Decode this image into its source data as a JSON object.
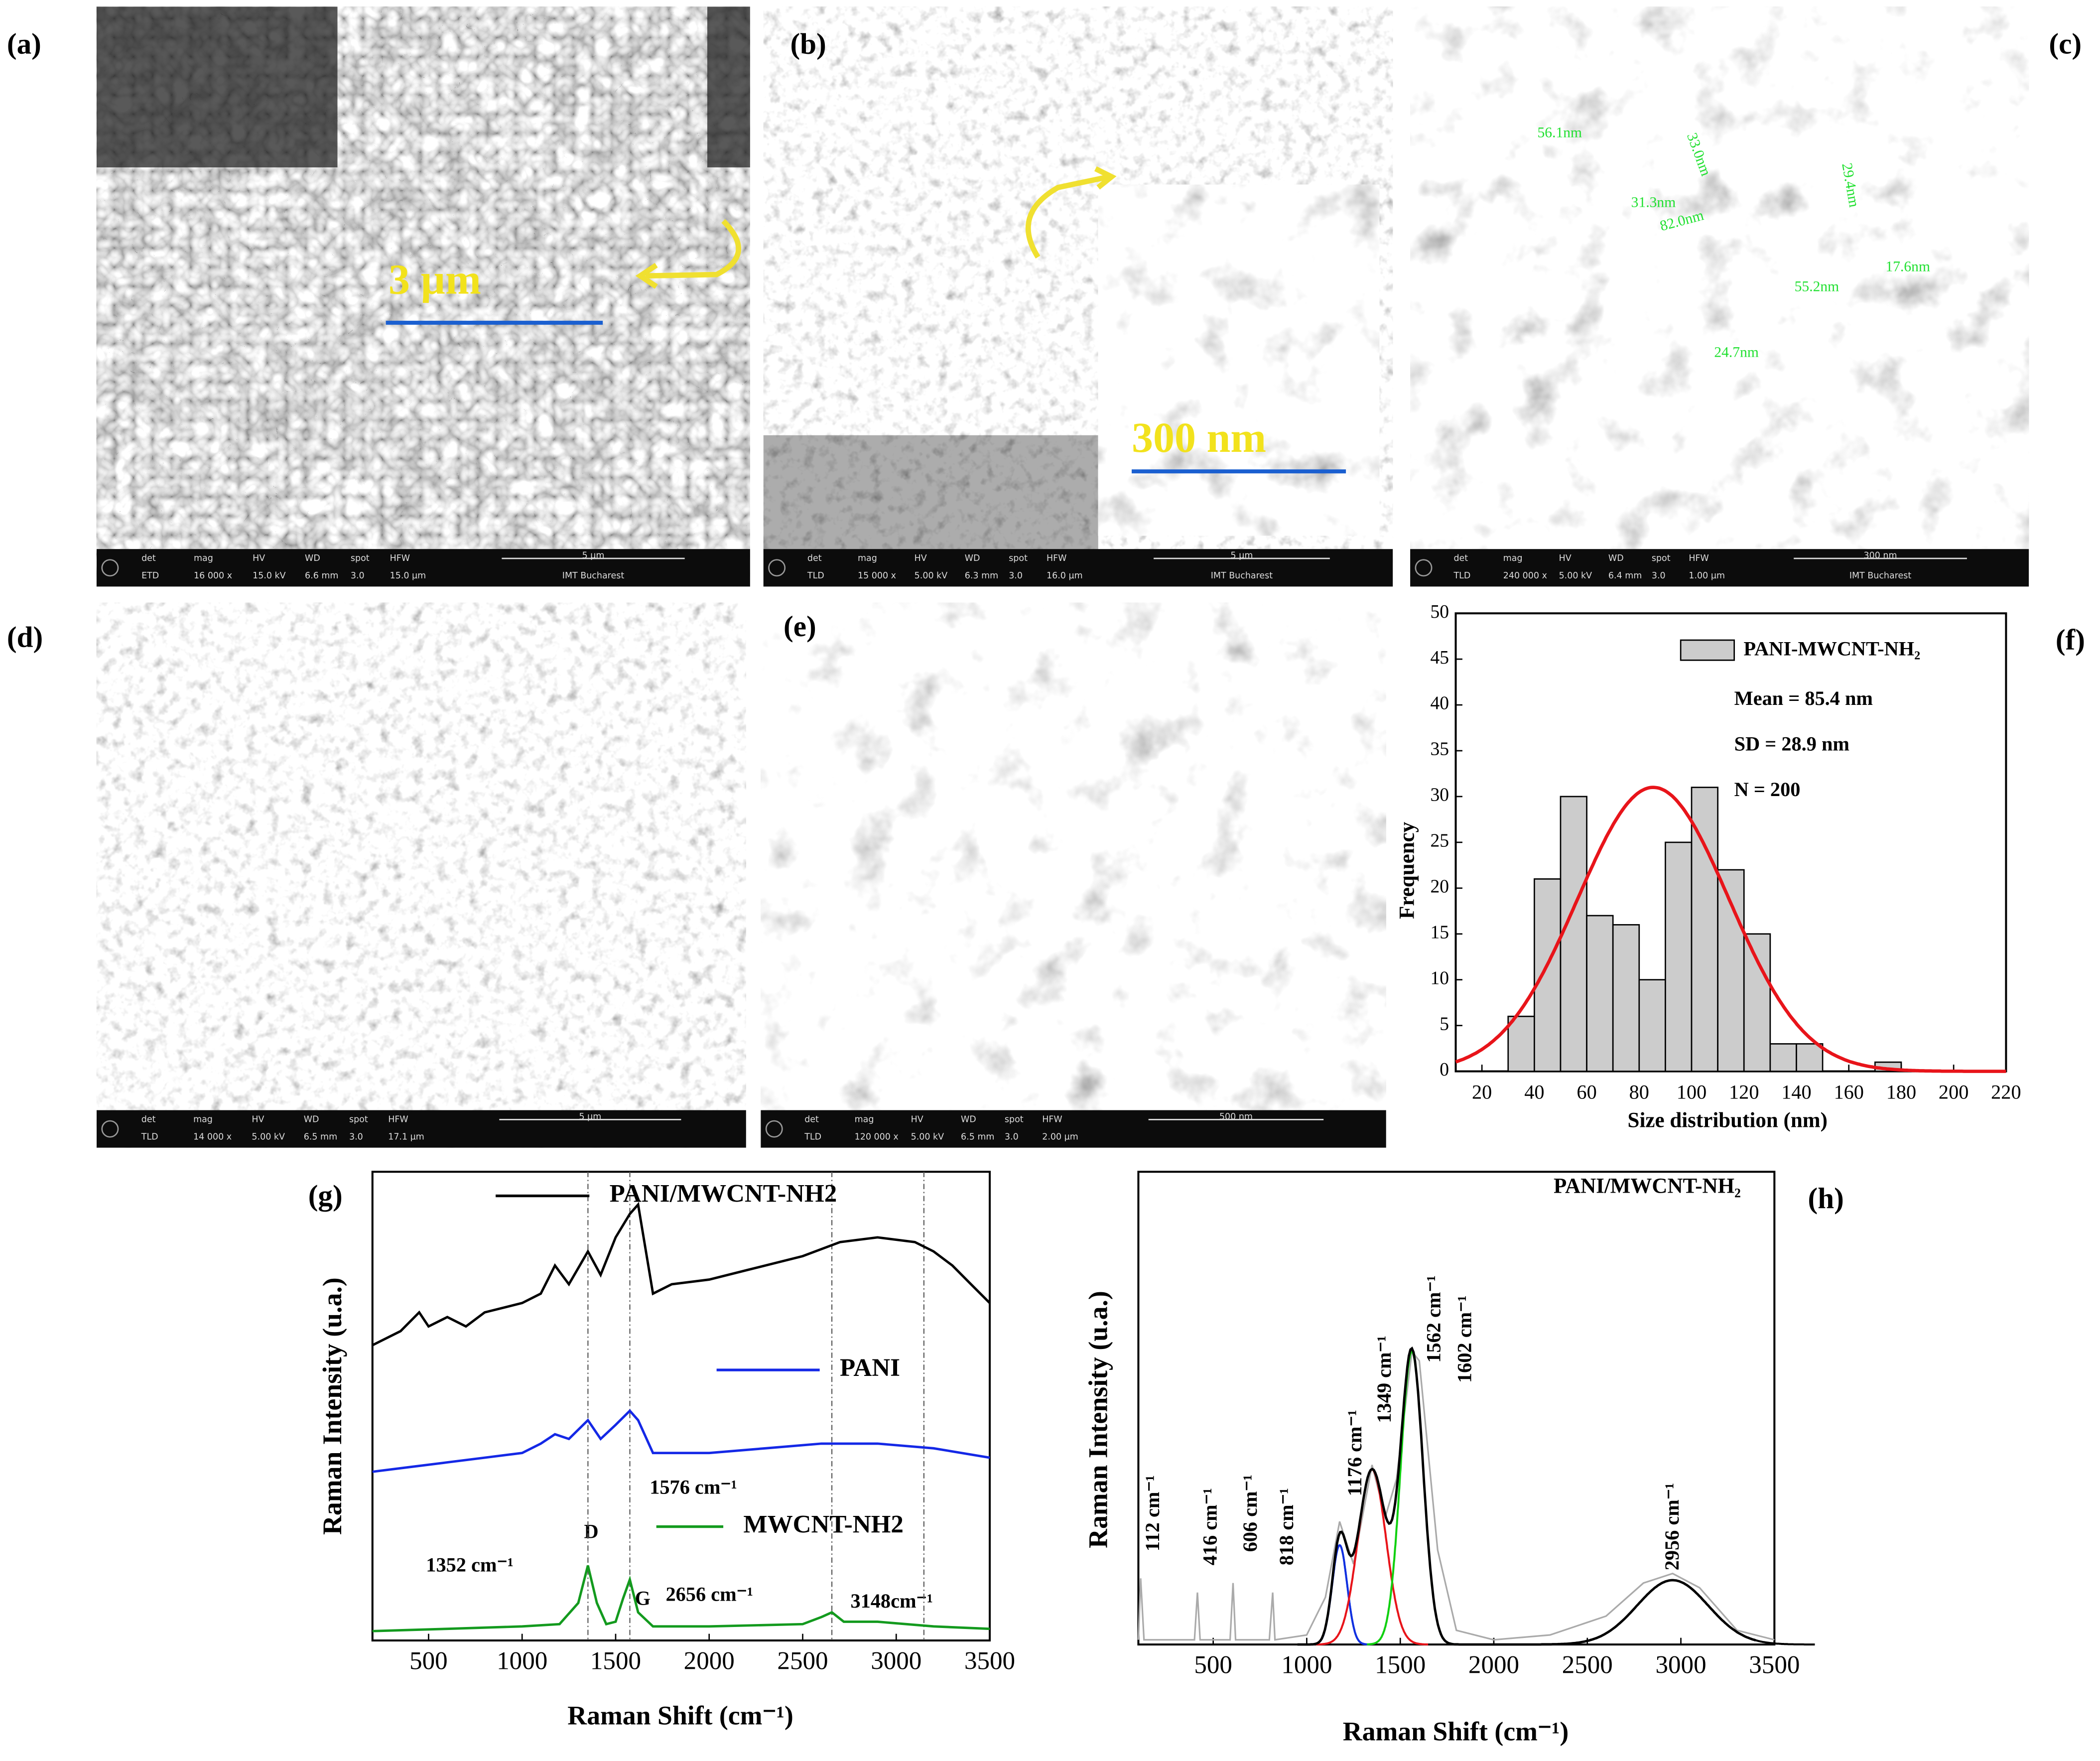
{
  "panel_labels": [
    "(a)",
    "(b)",
    "(c)",
    "(d)",
    "(e)",
    "(f)",
    "(g)",
    "(h)"
  ],
  "sem_databar_headers": [
    "det",
    "mag",
    "HV",
    "WD",
    "spot",
    "HFW"
  ],
  "sem_images": [
    {
      "databar": [
        "ETD",
        "16 000 x",
        "15.0 kV",
        "6.6 mm",
        "3.0",
        "15.0 µm"
      ],
      "scale_bar": "5 µm",
      "institution": "IMT Bucharest",
      "inset_scale_bar": "3 µm"
    },
    {
      "databar": [
        "TLD",
        "15 000 x",
        "5.00 kV",
        "6.3 mm",
        "3.0",
        "16.0 µm"
      ],
      "scale_bar": "5 µm",
      "institution": "IMT Bucharest",
      "inset_scale_bar": "300 nm"
    },
    {
      "databar": [
        "TLD",
        "240 000 x",
        "5.00 kV",
        "6.4 mm",
        "3.0",
        "1.00 µm"
      ],
      "scale_bar": "300 nm",
      "institution": "IMT Bucharest",
      "measurements": [
        "56.1nm",
        "33.0nm",
        "29.4nm",
        "31.3nm",
        "82.0nm",
        "55.2nm",
        "17.6nm",
        "24.7nm"
      ]
    },
    {
      "databar": [
        "TLD",
        "14 000 x",
        "5.00 kV",
        "6.5 mm",
        "3.0",
        "17.1 µm"
      ],
      "scale_bar": "5 µm"
    },
    {
      "databar": [
        "TLD",
        "120 000 x",
        "5.00 kV",
        "6.5 mm",
        "3.0",
        "2.00 µm"
      ],
      "scale_bar": "500 nm"
    }
  ],
  "chart_data": [
    {
      "type": "histogram",
      "name": "PANI-MWCNT-NH₂",
      "color": "#cccccc",
      "bins": [
        30,
        40,
        50,
        60,
        70,
        80,
        90,
        100,
        110,
        120,
        130,
        140,
        150,
        160,
        170,
        180
      ],
      "values": [
        6,
        21,
        30,
        17,
        16,
        10,
        25,
        31,
        22,
        15,
        3,
        3,
        0,
        0,
        1
      ],
      "annotations": [
        "Mean = 85.4 nm",
        "SD = 28.9 nm",
        "N = 200"
      ],
      "fit_curve": {
        "color": "#e8141a",
        "amplitude": 31,
        "mean": 85.4,
        "sd": 28.9
      },
      "x_label": "Size distribution (nm)",
      "y_label": "Frequency",
      "xlim": [
        10,
        220
      ],
      "xticks": [
        20,
        40,
        60,
        80,
        100,
        120,
        140,
        160,
        180,
        200,
        220
      ],
      "ylim": [
        0,
        50
      ],
      "yticks": [
        0,
        5,
        10,
        15,
        20,
        25,
        30,
        35,
        40,
        45,
        50
      ]
    },
    {
      "type": "line",
      "x_label": "Raman Shift (cm⁻¹)",
      "y_label": "Raman Intensity (u.a.)",
      "xlim": [
        200,
        3500
      ],
      "xticks": [
        500,
        1000,
        1500,
        2000,
        2500,
        3000,
        3500
      ],
      "ylim": [
        0,
        100
      ],
      "reference_lines": [
        1352,
        1576,
        2656,
        3148
      ],
      "annotations": [
        "1576 cm⁻¹",
        "1352 cm⁻¹",
        "D",
        "G",
        "2656 cm⁻¹",
        "3148cm⁻¹"
      ],
      "series": [
        {
          "name": "PANI/MWCNT-NH2",
          "color": "#000000",
          "x": [
            200,
            350,
            450,
            500,
            600,
            700,
            800,
            1000,
            1100,
            1176,
            1250,
            1352,
            1420,
            1500,
            1576,
            1620,
            1700,
            1800,
            2000,
            2200,
            2500,
            2700,
            2900,
            3100,
            3200,
            3300,
            3400,
            3500
          ],
          "values": [
            63,
            66,
            70,
            67,
            69,
            67,
            70,
            72,
            74,
            80,
            76,
            83,
            78,
            86,
            91,
            93,
            74,
            76,
            77,
            79,
            82,
            85,
            86,
            85,
            83,
            80,
            76,
            72
          ]
        },
        {
          "name": "PANI",
          "color": "#1428e6",
          "x": [
            200,
            400,
            600,
            800,
            1000,
            1100,
            1176,
            1250,
            1352,
            1420,
            1500,
            1576,
            1620,
            1700,
            2000,
            2300,
            2600,
            2900,
            3200,
            3500
          ],
          "values": [
            36,
            37,
            38,
            39,
            40,
            42,
            44,
            43,
            47,
            43,
            46,
            49,
            47,
            40,
            40,
            41,
            42,
            42,
            41,
            39
          ]
        },
        {
          "name": "MWCNT-NH2",
          "color": "#139a1e",
          "x": [
            200,
            600,
            1000,
            1200,
            1300,
            1352,
            1400,
            1450,
            1500,
            1540,
            1576,
            1620,
            1700,
            2000,
            2500,
            2600,
            2656,
            2720,
            2900,
            3200,
            3500
          ],
          "values": [
            2,
            2.5,
            3,
            3.5,
            8,
            16,
            8,
            3.5,
            4,
            9,
            13,
            6,
            3,
            3,
            3.5,
            5,
            6,
            4,
            4,
            3,
            2.5
          ]
        }
      ]
    },
    {
      "type": "line",
      "title": "PANI/MWCNT-NH₂",
      "x_label": "Raman Shift (cm⁻¹)",
      "y_label": "Raman Intensity (u.a.)",
      "xlim": [
        100,
        3500
      ],
      "xticks": [
        500,
        1000,
        1500,
        2000,
        2500,
        3000,
        3500
      ],
      "ylim": [
        0,
        100
      ],
      "annotations": [
        "112 cm⁻¹",
        "416 cm⁻¹",
        "606 cm⁻¹",
        "818 cm⁻¹",
        "1176 cm⁻¹",
        "1349 cm⁻¹",
        "1562 cm⁻¹",
        "1602 cm⁻¹",
        "2956 cm⁻¹"
      ],
      "series": [
        {
          "color": "#aaaaaa",
          "x": [
            100,
            112,
            130,
            400,
            416,
            430,
            590,
            606,
            620,
            800,
            818,
            830,
            1000,
            1100,
            1176,
            1250,
            1349,
            1420,
            1480,
            1562,
            1602,
            1700,
            1800,
            2000,
            2300,
            2600,
            2800,
            2956,
            3100,
            3300,
            3500
          ],
          "values": [
            1,
            14,
            1,
            1,
            11,
            1,
            1,
            13,
            1,
            1,
            11,
            1,
            2,
            10,
            26,
            17,
            38,
            27,
            35,
            62,
            60,
            20,
            3,
            1,
            2,
            6,
            13,
            15,
            12,
            3,
            1
          ]
        }
      ],
      "fit_components": [
        {
          "center": 1176,
          "amplitude": 21,
          "sd": 40,
          "color": "#1030e0"
        },
        {
          "center": 1349,
          "amplitude": 37,
          "sd": 75,
          "color": "#e8141a"
        },
        {
          "center": 1562,
          "amplitude": 62,
          "sd": 60,
          "color": "#10d010"
        },
        {
          "center": 2956,
          "amplitude": 13.6,
          "sd": 190,
          "color": "#000000"
        }
      ],
      "envelope_color": "#000000"
    }
  ]
}
